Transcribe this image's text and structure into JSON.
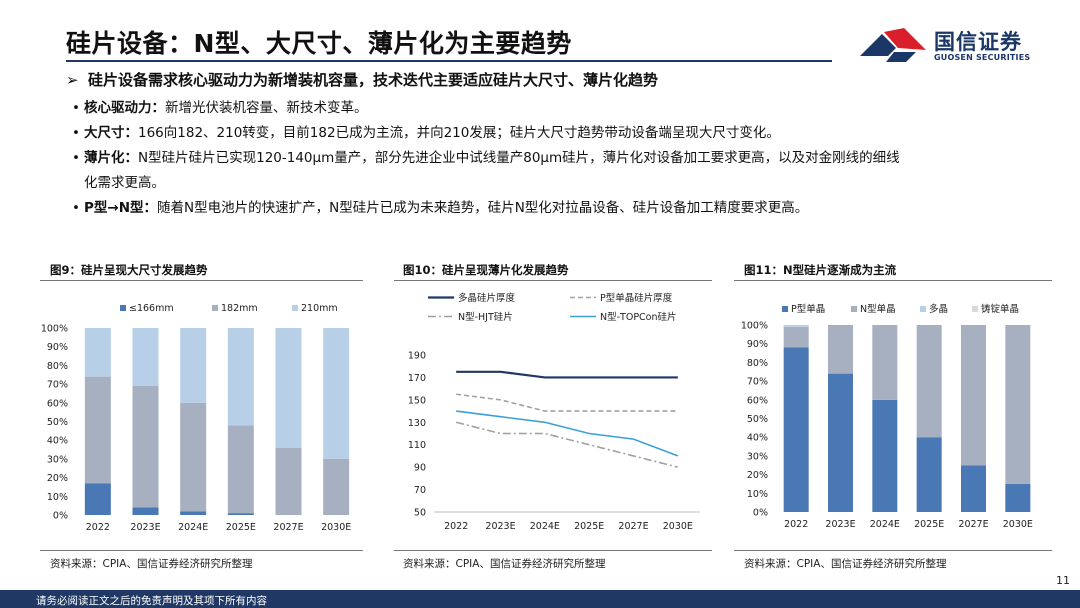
{
  "header": {
    "title": "硅片设备：N型、大尺寸、薄片化为主要趋势",
    "logo_cn": "国信证券",
    "logo_en": "GUOSEN SECURITIES"
  },
  "lead": {
    "arrow": "➢",
    "text": "硅片设备需求核心驱动力为新增装机容量，技术迭代主要适应硅片大尺寸、薄片化趋势"
  },
  "bullets": [
    {
      "key": "核心驱动力：",
      "text": "新增光伏装机容量、新技术变革。"
    },
    {
      "key": "大尺寸：",
      "text": "166向182、210转变，目前182已成为主流，并向210发展；硅片大尺寸趋势带动设备端呈现大尺寸变化。"
    },
    {
      "key": "薄片化：",
      "text": "N型硅片硅片已实现120-140μm量产，部分先进企业中试线量产80μm硅片，薄片化对设备加工要求更高，以及对金刚线的细线",
      "cont": "化需求更高。"
    },
    {
      "key": "P型→N型：",
      "text": "随着N型电池片的快速扩产，N型硅片已成为未来趋势，硅片N型化对拉晶设备、硅片设备加工精度要求更高。"
    }
  ],
  "panels": [
    {
      "title": "图9：硅片呈现大尺寸发展趋势",
      "source": "资料来源：CPIA、国信证券经济研究所整理"
    },
    {
      "title": "图10：硅片呈现薄片化发展趋势",
      "source": "资料来源：CPIA、国信证券经济研究所整理"
    },
    {
      "title": "图11：N型硅片逐渐成为主流",
      "source": "资料来源：CPIA、国信证券经济研究所整理"
    }
  ],
  "chart_data": [
    {
      "type": "bar",
      "stacked": true,
      "categories": [
        "2022",
        "2023E",
        "2024E",
        "2025E",
        "2027E",
        "2030E"
      ],
      "series": [
        {
          "name": "≤166mm",
          "color": "#4a78b5",
          "values": [
            17,
            4,
            2,
            1,
            0,
            0
          ]
        },
        {
          "name": "182mm",
          "color": "#a6b0c0",
          "values": [
            57,
            65,
            58,
            47,
            36,
            30
          ]
        },
        {
          "name": "210mm",
          "color": "#b8cfe8",
          "values": [
            26,
            31,
            40,
            52,
            64,
            70
          ]
        }
      ],
      "ylim": [
        0,
        100
      ],
      "yticks": [
        "0%",
        "10%",
        "20%",
        "30%",
        "40%",
        "50%",
        "60%",
        "70%",
        "80%",
        "90%",
        "100%"
      ],
      "legend": "top"
    },
    {
      "type": "line",
      "categories": [
        "2022",
        "2023E",
        "2024E",
        "2025E",
        "2027E",
        "2030E"
      ],
      "series": [
        {
          "name": "多晶硅片厚度",
          "color": "#1f3864",
          "dash": "solid",
          "values": [
            175,
            175,
            170,
            170,
            170,
            170
          ]
        },
        {
          "name": "P型单晶硅片厚度",
          "color": "#a0a0a0",
          "dash": "dash",
          "values": [
            155,
            150,
            140,
            140,
            140,
            140
          ]
        },
        {
          "name": "N型-HJT硅片",
          "color": "#a0a0a0",
          "dash": "dashdot",
          "values": [
            130,
            120,
            120,
            110,
            100,
            90
          ]
        },
        {
          "name": "N型-TOPCon硅片",
          "color": "#3aa0d8",
          "dash": "solid",
          "values": [
            140,
            135,
            130,
            120,
            115,
            100
          ]
        }
      ],
      "ylim": [
        50,
        190
      ],
      "yticks": [
        "50",
        "70",
        "90",
        "110",
        "130",
        "150",
        "170",
        "190"
      ],
      "legend": "top"
    },
    {
      "type": "bar",
      "stacked": true,
      "categories": [
        "2022",
        "2023E",
        "2024E",
        "2025E",
        "2027E",
        "2030E"
      ],
      "series": [
        {
          "name": "P型单晶",
          "color": "#4a78b5",
          "values": [
            88,
            74,
            60,
            40,
            25,
            15
          ]
        },
        {
          "name": "N型单晶",
          "color": "#a6b0c0",
          "values": [
            11,
            26,
            40,
            60,
            75,
            85
          ]
        },
        {
          "name": "多晶",
          "color": "#b8cfe8",
          "values": [
            1,
            0,
            0,
            0,
            0,
            0
          ]
        },
        {
          "name": "铸锭单晶",
          "color": "#d9d9d9",
          "values": [
            0,
            0,
            0,
            0,
            0,
            0
          ]
        }
      ],
      "ylim": [
        0,
        100
      ],
      "yticks": [
        "0%",
        "10%",
        "20%",
        "30%",
        "40%",
        "50%",
        "60%",
        "70%",
        "80%",
        "90%",
        "100%"
      ],
      "legend": "top"
    }
  ],
  "page_number": "11",
  "footer": "请务必阅读正文之后的免责声明及其项下所有内容"
}
